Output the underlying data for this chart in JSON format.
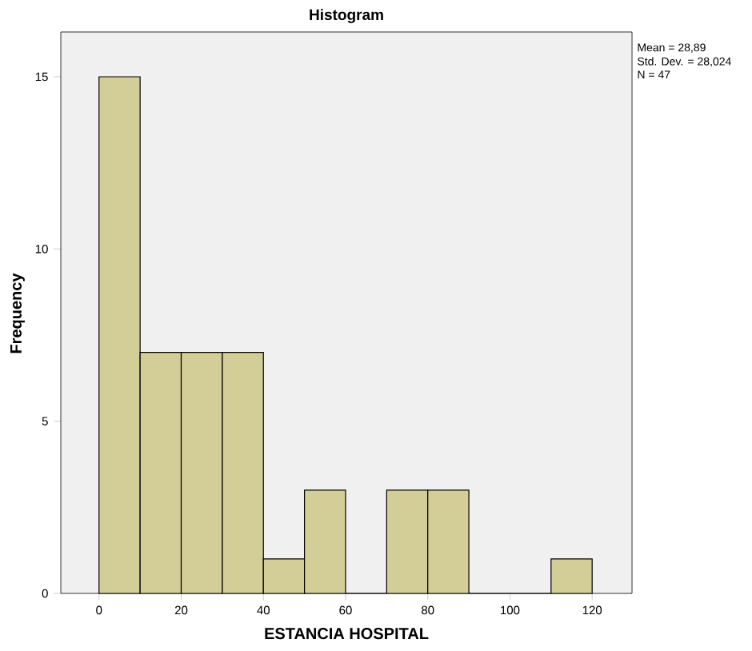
{
  "chart_data": {
    "type": "histogram",
    "title": "Histogram",
    "xlabel": "ESTANCIA HOSPITAL",
    "ylabel": "Frequency",
    "bins": [
      0,
      10,
      20,
      30,
      40,
      50,
      60,
      70,
      80,
      90,
      100,
      110,
      120
    ],
    "values": [
      15,
      7,
      7,
      7,
      1,
      3,
      0,
      3,
      3,
      0,
      0,
      1
    ],
    "color": "#d3ce97",
    "xlim": [
      -9.3,
      129.7
    ],
    "ylim": [
      0,
      16.3
    ],
    "xticks": [
      0,
      20,
      40,
      60,
      80,
      100,
      120
    ],
    "yticks": [
      0,
      5,
      10,
      15
    ],
    "annotations": [
      "Mean = 28,89",
      "Std. Dev. = 28,024",
      "N = 47"
    ]
  }
}
